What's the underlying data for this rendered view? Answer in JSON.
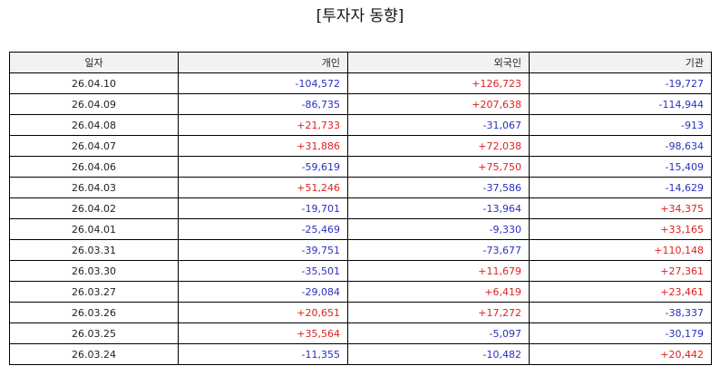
{
  "title": "[투자자 동향]",
  "colors": {
    "positive": "#e02020",
    "negative": "#2a2fc0",
    "border": "#000000",
    "header_bg": "#f2f2f2"
  },
  "table": {
    "headers": [
      "일자",
      "개인",
      "외국인",
      "기관"
    ],
    "rows": [
      {
        "date": "26.04.10",
        "individual": "-104,572",
        "foreign": "+126,723",
        "institution": "-19,727"
      },
      {
        "date": "26.04.09",
        "individual": "-86,735",
        "foreign": "+207,638",
        "institution": "-114,944"
      },
      {
        "date": "26.04.08",
        "individual": "+21,733",
        "foreign": "-31,067",
        "institution": "-913"
      },
      {
        "date": "26.04.07",
        "individual": "+31,886",
        "foreign": "+72,038",
        "institution": "-98,634"
      },
      {
        "date": "26.04.06",
        "individual": "-59,619",
        "foreign": "+75,750",
        "institution": "-15,409"
      },
      {
        "date": "26.04.03",
        "individual": "+51,246",
        "foreign": "-37,586",
        "institution": "-14,629"
      },
      {
        "date": "26.04.02",
        "individual": "-19,701",
        "foreign": "-13,964",
        "institution": "+34,375"
      },
      {
        "date": "26.04.01",
        "individual": "-25,469",
        "foreign": "-9,330",
        "institution": "+33,165"
      },
      {
        "date": "26.03.31",
        "individual": "-39,751",
        "foreign": "-73,677",
        "institution": "+110,148"
      },
      {
        "date": "26.03.30",
        "individual": "-35,501",
        "foreign": "+11,679",
        "institution": "+27,361"
      },
      {
        "date": "26.03.27",
        "individual": "-29,084",
        "foreign": "+6,419",
        "institution": "+23,461"
      },
      {
        "date": "26.03.26",
        "individual": "+20,651",
        "foreign": "+17,272",
        "institution": "-38,337"
      },
      {
        "date": "26.03.25",
        "individual": "+35,564",
        "foreign": "-5,097",
        "institution": "-30,179"
      },
      {
        "date": "26.03.24",
        "individual": "-11,355",
        "foreign": "-10,482",
        "institution": "+20,442"
      }
    ]
  }
}
